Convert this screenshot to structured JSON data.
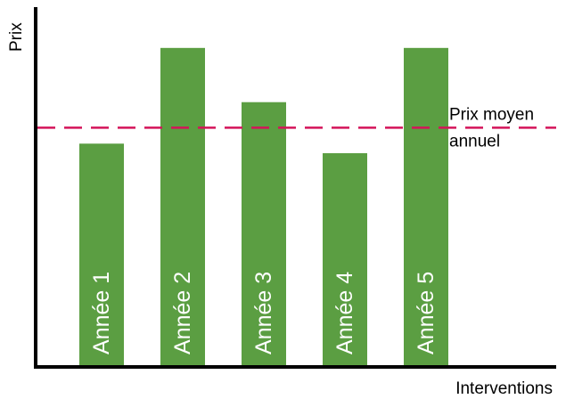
{
  "chart_data": {
    "type": "bar",
    "categories": [
      "Année 1",
      "Année 2",
      "Année 3",
      "Année 4",
      "Année 5"
    ],
    "values": [
      70,
      100,
      83,
      67,
      100
    ],
    "xlabel": "Interventions",
    "ylabel": "Prix",
    "ylim": [
      0,
      110
    ],
    "grid": false,
    "reference_line": {
      "label_line1": "Prix moyen",
      "label_line2": "annuel",
      "value": 75,
      "style": "dashed",
      "color": "#d4145a"
    },
    "bar_color": "#5b9e42",
    "bar_label_color": "#ffffff",
    "axis_color": "#000000"
  }
}
